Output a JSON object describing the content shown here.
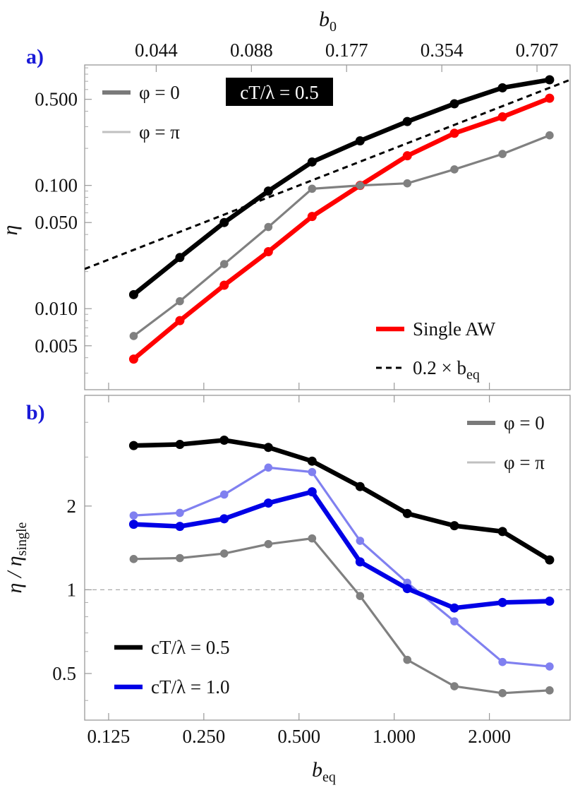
{
  "chart_data": [
    {
      "panel_label": "a)",
      "type": "line",
      "xscale": "log2",
      "yscale": "log",
      "xlabel": "b_eq",
      "top_axis_label": "b_0",
      "ylabel": "η",
      "xlim": [
        0.105,
        3.6
      ],
      "ylim": [
        0.0022,
        0.95
      ],
      "xticks": [
        0.125,
        0.25,
        0.5,
        1.0,
        2.0
      ],
      "xtick_labels": [
        "0.125",
        "0.250",
        "0.500",
        "1.000",
        "2.000"
      ],
      "top_xticks": [
        0.044,
        0.088,
        0.177,
        0.354,
        0.707
      ],
      "top_xtick_labels": [
        "0.044",
        "0.088",
        "0.177",
        "0.354",
        "0.707"
      ],
      "top_tick_positions_beq": [
        0.1768,
        0.3536,
        0.7071,
        1.4142,
        2.8284
      ],
      "yticks": [
        0.005,
        0.01,
        0.05,
        0.1,
        0.5
      ],
      "ytick_labels": [
        "0.005",
        "0.010",
        "0.050",
        "0.100",
        "0.500"
      ],
      "x": [
        0.15,
        0.21,
        0.29,
        0.4,
        0.55,
        0.78,
        1.1,
        1.55,
        2.2,
        3.1
      ],
      "badge": "cT/λ = 0.5",
      "series": [
        {
          "name": "φ = 0",
          "legend": true,
          "color": "#000000",
          "width": 6.5,
          "values": [
            0.013,
            0.026,
            0.05,
            0.09,
            0.155,
            0.23,
            0.33,
            0.46,
            0.62,
            0.72
          ]
        },
        {
          "name": "φ = π",
          "legend": true,
          "color": "#808080",
          "width": 3.2,
          "values": [
            0.006,
            0.0115,
            0.023,
            0.046,
            0.094,
            0.1,
            0.104,
            0.135,
            0.18,
            0.255
          ]
        },
        {
          "name": "Single AW",
          "legend": true,
          "color": "#ff0000",
          "width": 6.5,
          "values": [
            0.0039,
            0.008,
            0.0155,
            0.029,
            0.056,
            0.1,
            0.174,
            0.265,
            0.36,
            0.51
          ]
        }
      ],
      "reference_line": {
        "name": "0.2 × b_eq",
        "color": "#000000",
        "dash": true,
        "slope": 0.2,
        "xfrom": 0.105,
        "xto": 3.6
      }
    },
    {
      "panel_label": "b)",
      "type": "line",
      "xscale": "log2",
      "yscale": "log",
      "xlabel": "b_eq",
      "ylabel": "η / η_single",
      "xlim": [
        0.105,
        3.6
      ],
      "ylim": [
        0.34,
        5.0
      ],
      "xticks": [
        0.125,
        0.25,
        0.5,
        1.0,
        2.0
      ],
      "xtick_labels": [
        "0.125",
        "0.250",
        "0.500",
        "1.000",
        "2.000"
      ],
      "yticks": [
        0.5,
        1,
        2
      ],
      "ytick_labels": [
        "0.5",
        "1",
        "2"
      ],
      "hline": 1,
      "x": [
        0.15,
        0.21,
        0.29,
        0.4,
        0.55,
        0.78,
        1.1,
        1.55,
        2.2,
        3.1
      ],
      "series": [
        {
          "name": "cT/λ = 0.5",
          "legend": true,
          "color": "#000000",
          "width": 6.5,
          "values": [
            3.3,
            3.33,
            3.45,
            3.25,
            2.9,
            2.35,
            1.88,
            1.7,
            1.62,
            1.28
          ]
        },
        {
          "name": "cT/λ = 1.0",
          "legend": true,
          "color": "#0000e6",
          "width": 6.5,
          "values": [
            1.72,
            1.69,
            1.8,
            2.05,
            2.25,
            1.26,
            1.01,
            0.86,
            0.9,
            0.91
          ]
        },
        {
          "name": "cT/λ = 1.0 φ = π",
          "legend": false,
          "color": "#8080f0",
          "width": 3.2,
          "values": [
            1.85,
            1.89,
            2.2,
            2.75,
            2.65,
            1.5,
            1.06,
            0.77,
            0.55,
            0.53
          ]
        },
        {
          "name": "cT/λ = 0.5 φ = π",
          "legend": false,
          "color": "#808080",
          "width": 3.2,
          "values": [
            1.29,
            1.3,
            1.35,
            1.46,
            1.53,
            0.95,
            0.56,
            0.45,
            0.425,
            0.435
          ]
        }
      ],
      "phase_legend": [
        {
          "name": "φ = 0",
          "color": "#808080"
        },
        {
          "name": "φ = π",
          "color": "#c0c0c0"
        }
      ]
    }
  ]
}
